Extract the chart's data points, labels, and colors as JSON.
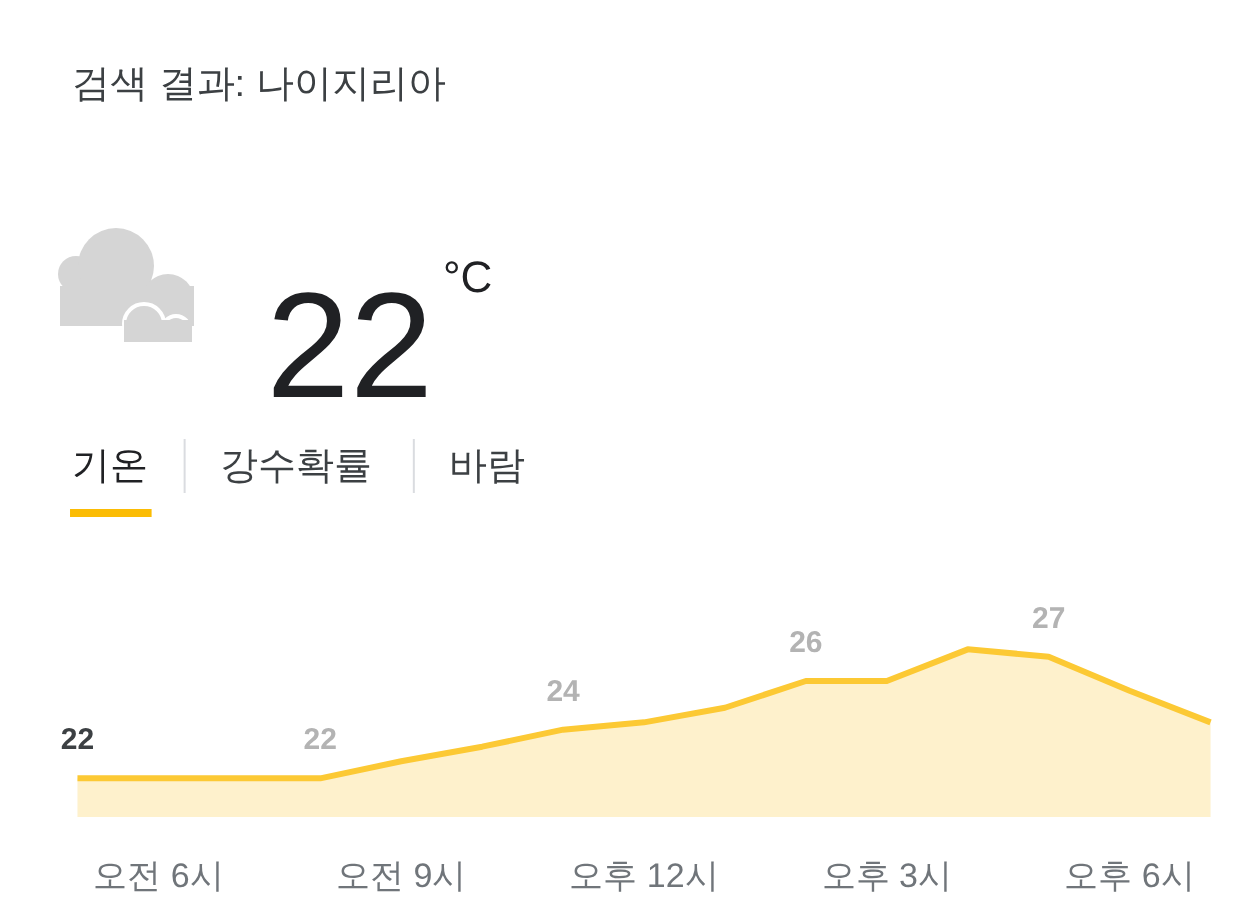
{
  "chart_data": {
    "type": "area",
    "title": "검색 결과: 나이지리아",
    "annotations": [
      "22",
      "°C",
      "기온",
      "강수확률",
      "바람"
    ],
    "categories": [
      null,
      "오전 6시",
      null,
      null,
      "오전 9시",
      null,
      null,
      "오후 12시",
      null,
      null,
      "오후 3시",
      null,
      null,
      "오후 6시",
      null
    ],
    "series": [
      {
        "color": "#fcc934",
        "values": [
          22,
          22,
          22,
          22,
          22.7,
          23.3,
          24,
          24.3,
          24.9,
          26,
          26,
          27.3,
          27,
          25.6,
          24.3
        ],
        "value_labels": [
          "22",
          null,
          null,
          "22",
          null,
          null,
          "24",
          null,
          null,
          "26",
          null,
          null,
          "27",
          null,
          null
        ]
      }
    ],
    "tick_labels": "x"
  }
}
